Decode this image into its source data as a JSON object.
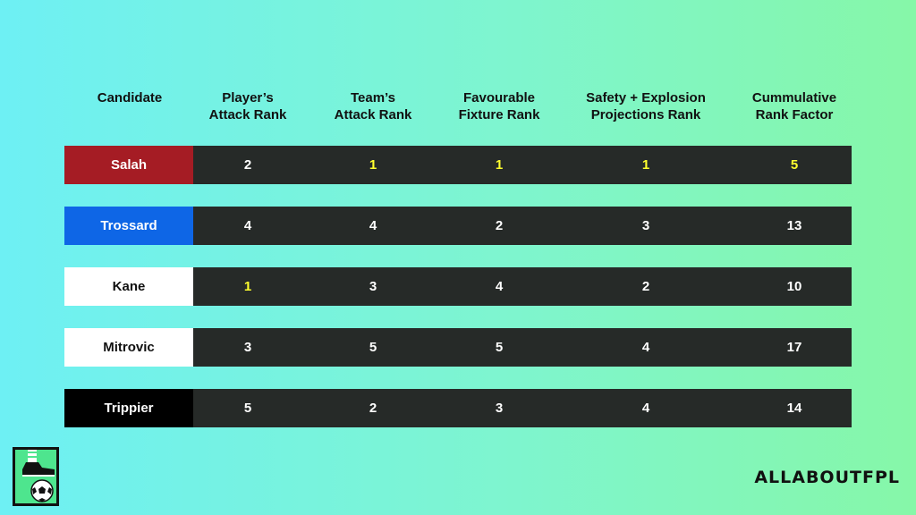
{
  "headers": [
    "Candidate",
    "Player’s\nAttack Rank",
    "Team’s\nAttack Rank",
    "Favourable\nFixture Rank",
    "Safety + Explosion\nProjections Rank",
    "Cummulative\nRank Factor"
  ],
  "rows": [
    {
      "name": "Salah",
      "name_bg": "#a51c24",
      "name_color": "#ffffff",
      "values": [
        "2",
        "1",
        "1",
        "1",
        "5"
      ],
      "highlight": [
        false,
        true,
        true,
        true,
        true
      ]
    },
    {
      "name": "Trossard",
      "name_bg": "#0e66e6",
      "name_color": "#ffffff",
      "values": [
        "4",
        "4",
        "2",
        "3",
        "13"
      ],
      "highlight": [
        false,
        false,
        false,
        false,
        false
      ]
    },
    {
      "name": "Kane",
      "name_bg": "#ffffff",
      "name_color": "#111111",
      "values": [
        "1",
        "3",
        "4",
        "2",
        "10"
      ],
      "highlight": [
        true,
        false,
        false,
        false,
        false
      ]
    },
    {
      "name": "Mitrovic",
      "name_bg": "#ffffff",
      "name_color": "#111111",
      "values": [
        "3",
        "5",
        "5",
        "4",
        "17"
      ],
      "highlight": [
        false,
        false,
        false,
        false,
        false
      ]
    },
    {
      "name": "Trippier",
      "name_bg": "#000000",
      "name_color": "#ffffff",
      "values": [
        "5",
        "2",
        "3",
        "4",
        "14"
      ],
      "highlight": [
        false,
        false,
        false,
        false,
        false
      ]
    }
  ],
  "colors": {
    "row_bg": "#262a28",
    "highlight": "#ffff2e"
  },
  "brand": "ALLABOUTFPL",
  "logo_icon": "boot-and-football-icon"
}
